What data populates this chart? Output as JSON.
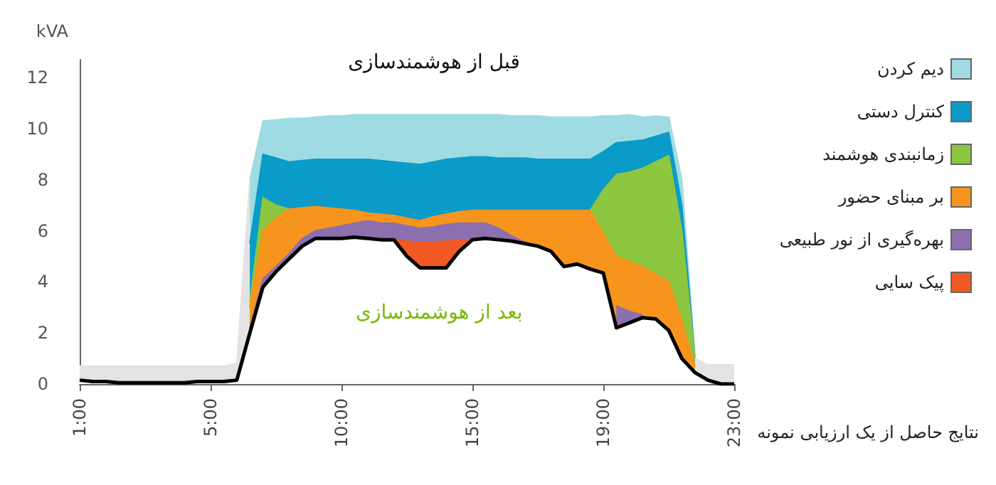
{
  "chart_data": {
    "type": "area",
    "title": "قبل از هوشمندسازی",
    "ylabel": "kVA",
    "annotations": [
      "بعد از هوشمندسازی",
      "نتایج حاصل از یک ارزیابی نمونه"
    ],
    "categories": [
      "1:00",
      null,
      null,
      null,
      null,
      null,
      null,
      null,
      null,
      null,
      "5:00",
      null,
      null,
      null,
      null,
      null,
      null,
      null,
      null,
      null,
      "10:00",
      null,
      null,
      null,
      null,
      null,
      null,
      null,
      null,
      null,
      "15:00",
      null,
      null,
      null,
      null,
      null,
      null,
      null,
      null,
      null,
      "19:00",
      null,
      null,
      null,
      null,
      null,
      null,
      null,
      null,
      null,
      "23:00"
    ],
    "ylim": [
      0,
      12.7
    ],
    "yticks": [
      0,
      2,
      4,
      6,
      8,
      10,
      12
    ],
    "grid": false,
    "legend": "right",
    "marker": "none",
    "line_style": "solid",
    "series": [
      {
        "color": "#e3e3e3",
        "values": [
          0.7,
          0.7,
          0.7,
          0.7,
          0.7,
          0.7,
          0.7,
          0.7,
          0.7,
          0.7,
          0.7,
          0.7,
          0.8,
          8.0,
          null,
          null,
          null,
          null,
          null,
          null,
          null,
          null,
          null,
          null,
          null,
          null,
          null,
          null,
          null,
          null,
          null,
          null,
          null,
          null,
          null,
          null,
          null,
          null,
          null,
          null,
          null,
          null,
          null,
          null,
          null,
          10.45,
          8.0,
          1.0,
          0.75,
          0.75,
          0.75
        ]
      },
      {
        "name": "دیم کردن",
        "color": "#9fdbe2",
        "values": [
          null,
          null,
          null,
          null,
          null,
          null,
          null,
          null,
          null,
          null,
          null,
          null,
          null,
          8.0,
          10.3,
          10.35,
          10.4,
          10.4,
          10.45,
          10.5,
          10.5,
          10.55,
          10.55,
          10.55,
          10.55,
          10.55,
          10.55,
          10.55,
          10.55,
          10.55,
          10.55,
          10.55,
          10.55,
          10.5,
          10.5,
          10.5,
          10.45,
          10.45,
          10.45,
          10.45,
          10.5,
          10.5,
          10.55,
          10.45,
          10.5,
          10.45,
          8.0,
          1.0,
          null,
          null,
          null
        ]
      },
      {
        "name": "کنترل دستی",
        "color": "#0a9bc8",
        "values": [
          null,
          null,
          null,
          null,
          null,
          null,
          null,
          null,
          null,
          null,
          null,
          null,
          null,
          5.5,
          9.0,
          8.85,
          8.7,
          8.75,
          8.8,
          8.8,
          8.8,
          8.8,
          8.8,
          8.75,
          8.7,
          8.65,
          8.6,
          8.7,
          8.8,
          8.85,
          8.9,
          8.9,
          8.85,
          8.85,
          8.85,
          8.8,
          8.8,
          8.8,
          8.8,
          8.8,
          9.1,
          9.45,
          9.5,
          9.55,
          9.7,
          9.85,
          7.0,
          1.0,
          null,
          null,
          null
        ]
      },
      {
        "name": "زمانبندی هوشمند",
        "color": "#8dc63f",
        "values": [
          null,
          null,
          null,
          null,
          null,
          null,
          null,
          null,
          null,
          null,
          null,
          null,
          null,
          3.2,
          7.3,
          7.0,
          6.85,
          null,
          null,
          null,
          null,
          null,
          null,
          null,
          null,
          null,
          null,
          null,
          null,
          null,
          null,
          null,
          null,
          null,
          null,
          null,
          null,
          null,
          null,
          6.8,
          7.6,
          8.2,
          8.3,
          8.45,
          8.7,
          8.95,
          6.0,
          1.0,
          null,
          null,
          null
        ]
      },
      {
        "name": "بر مبنای حضور",
        "color": "#f7941d",
        "values": [
          null,
          null,
          null,
          null,
          null,
          null,
          null,
          null,
          null,
          null,
          null,
          null,
          null,
          3.0,
          6.0,
          6.5,
          6.85,
          6.9,
          6.95,
          6.9,
          6.85,
          6.8,
          6.7,
          6.65,
          6.6,
          6.5,
          6.4,
          6.55,
          6.65,
          6.75,
          6.8,
          6.8,
          6.8,
          6.8,
          6.8,
          6.8,
          6.8,
          6.8,
          6.8,
          6.8,
          5.9,
          5.0,
          4.8,
          4.6,
          4.3,
          4.0,
          2.5,
          0.7,
          null,
          null,
          null
        ]
      },
      {
        "name": "بهره‌گیری از نور طبیعی",
        "color": "#8c6fae",
        "values": [
          null,
          null,
          null,
          null,
          null,
          null,
          null,
          null,
          null,
          null,
          null,
          null,
          null,
          2.2,
          4.1,
          4.6,
          5.1,
          5.7,
          6.0,
          6.1,
          6.2,
          6.3,
          6.4,
          6.3,
          6.3,
          6.2,
          6.1,
          6.15,
          6.25,
          6.3,
          6.3,
          6.3,
          6.1,
          5.8,
          5.55,
          null,
          null,
          null,
          null,
          null,
          null,
          3.05,
          2.85,
          2.7,
          null,
          null,
          null,
          null,
          null,
          null,
          null
        ]
      },
      {
        "name": "پیک سایی",
        "color": "#f15a24",
        "values": [
          null,
          null,
          null,
          null,
          null,
          null,
          null,
          null,
          null,
          null,
          null,
          null,
          null,
          null,
          null,
          null,
          null,
          null,
          null,
          null,
          null,
          null,
          null,
          null,
          5.65,
          5.6,
          5.55,
          5.55,
          5.6,
          5.65,
          5.65,
          null,
          null,
          null,
          null,
          null,
          null,
          null,
          null,
          null,
          null,
          null,
          null,
          null,
          null,
          null,
          null,
          null,
          null,
          null,
          null
        ]
      },
      {
        "type": "line",
        "color": "#000000",
        "values": [
          0.15,
          0.1,
          0.1,
          0.05,
          0.05,
          0.05,
          0.05,
          0.05,
          0.05,
          0.1,
          0.1,
          0.1,
          0.15,
          2.0,
          3.8,
          4.4,
          4.9,
          5.4,
          5.7,
          5.7,
          5.7,
          5.75,
          5.7,
          5.65,
          5.65,
          5.0,
          4.55,
          4.55,
          4.55,
          5.2,
          5.65,
          5.7,
          5.65,
          5.6,
          5.5,
          5.4,
          5.2,
          4.6,
          4.7,
          4.5,
          4.35,
          2.2,
          2.4,
          2.6,
          2.55,
          2.1,
          1.0,
          0.45,
          0.15,
          0,
          0
        ]
      }
    ]
  }
}
